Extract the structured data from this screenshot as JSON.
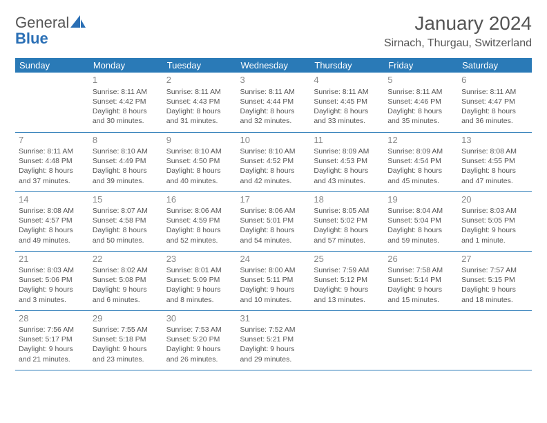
{
  "logo": {
    "general": "General",
    "blue": "Blue"
  },
  "title": "January 2024",
  "location": "Sirnach, Thurgau, Switzerland",
  "colors": {
    "header_bg": "#2a7ab7",
    "header_text": "#ffffff",
    "body_text": "#555555",
    "daynum_text": "#888888",
    "rule": "#2a7ab7",
    "logo_blue": "#2a6fb5"
  },
  "weekdays": [
    "Sunday",
    "Monday",
    "Tuesday",
    "Wednesday",
    "Thursday",
    "Friday",
    "Saturday"
  ],
  "layout": {
    "start_weekday_index": 1,
    "num_days": 31
  },
  "days": {
    "1": {
      "sunrise": "8:11 AM",
      "sunset": "4:42 PM",
      "daylight": "8 hours and 30 minutes."
    },
    "2": {
      "sunrise": "8:11 AM",
      "sunset": "4:43 PM",
      "daylight": "8 hours and 31 minutes."
    },
    "3": {
      "sunrise": "8:11 AM",
      "sunset": "4:44 PM",
      "daylight": "8 hours and 32 minutes."
    },
    "4": {
      "sunrise": "8:11 AM",
      "sunset": "4:45 PM",
      "daylight": "8 hours and 33 minutes."
    },
    "5": {
      "sunrise": "8:11 AM",
      "sunset": "4:46 PM",
      "daylight": "8 hours and 35 minutes."
    },
    "6": {
      "sunrise": "8:11 AM",
      "sunset": "4:47 PM",
      "daylight": "8 hours and 36 minutes."
    },
    "7": {
      "sunrise": "8:11 AM",
      "sunset": "4:48 PM",
      "daylight": "8 hours and 37 minutes."
    },
    "8": {
      "sunrise": "8:10 AM",
      "sunset": "4:49 PM",
      "daylight": "8 hours and 39 minutes."
    },
    "9": {
      "sunrise": "8:10 AM",
      "sunset": "4:50 PM",
      "daylight": "8 hours and 40 minutes."
    },
    "10": {
      "sunrise": "8:10 AM",
      "sunset": "4:52 PM",
      "daylight": "8 hours and 42 minutes."
    },
    "11": {
      "sunrise": "8:09 AM",
      "sunset": "4:53 PM",
      "daylight": "8 hours and 43 minutes."
    },
    "12": {
      "sunrise": "8:09 AM",
      "sunset": "4:54 PM",
      "daylight": "8 hours and 45 minutes."
    },
    "13": {
      "sunrise": "8:08 AM",
      "sunset": "4:55 PM",
      "daylight": "8 hours and 47 minutes."
    },
    "14": {
      "sunrise": "8:08 AM",
      "sunset": "4:57 PM",
      "daylight": "8 hours and 49 minutes."
    },
    "15": {
      "sunrise": "8:07 AM",
      "sunset": "4:58 PM",
      "daylight": "8 hours and 50 minutes."
    },
    "16": {
      "sunrise": "8:06 AM",
      "sunset": "4:59 PM",
      "daylight": "8 hours and 52 minutes."
    },
    "17": {
      "sunrise": "8:06 AM",
      "sunset": "5:01 PM",
      "daylight": "8 hours and 54 minutes."
    },
    "18": {
      "sunrise": "8:05 AM",
      "sunset": "5:02 PM",
      "daylight": "8 hours and 57 minutes."
    },
    "19": {
      "sunrise": "8:04 AM",
      "sunset": "5:04 PM",
      "daylight": "8 hours and 59 minutes."
    },
    "20": {
      "sunrise": "8:03 AM",
      "sunset": "5:05 PM",
      "daylight": "9 hours and 1 minute."
    },
    "21": {
      "sunrise": "8:03 AM",
      "sunset": "5:06 PM",
      "daylight": "9 hours and 3 minutes."
    },
    "22": {
      "sunrise": "8:02 AM",
      "sunset": "5:08 PM",
      "daylight": "9 hours and 6 minutes."
    },
    "23": {
      "sunrise": "8:01 AM",
      "sunset": "5:09 PM",
      "daylight": "9 hours and 8 minutes."
    },
    "24": {
      "sunrise": "8:00 AM",
      "sunset": "5:11 PM",
      "daylight": "9 hours and 10 minutes."
    },
    "25": {
      "sunrise": "7:59 AM",
      "sunset": "5:12 PM",
      "daylight": "9 hours and 13 minutes."
    },
    "26": {
      "sunrise": "7:58 AM",
      "sunset": "5:14 PM",
      "daylight": "9 hours and 15 minutes."
    },
    "27": {
      "sunrise": "7:57 AM",
      "sunset": "5:15 PM",
      "daylight": "9 hours and 18 minutes."
    },
    "28": {
      "sunrise": "7:56 AM",
      "sunset": "5:17 PM",
      "daylight": "9 hours and 21 minutes."
    },
    "29": {
      "sunrise": "7:55 AM",
      "sunset": "5:18 PM",
      "daylight": "9 hours and 23 minutes."
    },
    "30": {
      "sunrise": "7:53 AM",
      "sunset": "5:20 PM",
      "daylight": "9 hours and 26 minutes."
    },
    "31": {
      "sunrise": "7:52 AM",
      "sunset": "5:21 PM",
      "daylight": "9 hours and 29 minutes."
    }
  },
  "labels": {
    "sunrise": "Sunrise: ",
    "sunset": "Sunset: ",
    "daylight": "Daylight: "
  }
}
